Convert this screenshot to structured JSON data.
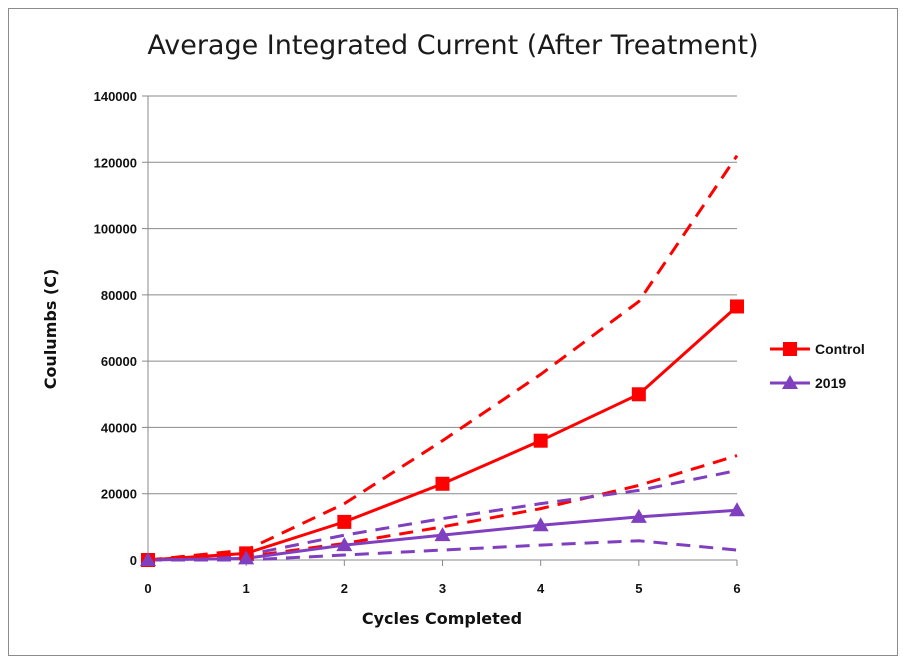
{
  "chart_data": {
    "type": "line",
    "title": "Average Integrated Current (After Treatment)",
    "xlabel": "Cycles Completed",
    "ylabel": "Coulumbs (C)",
    "x": [
      0,
      1,
      2,
      3,
      4,
      5,
      6
    ],
    "xlim": [
      0,
      6
    ],
    "ylim": [
      0,
      140000
    ],
    "yticks": [
      0,
      20000,
      40000,
      60000,
      80000,
      100000,
      120000,
      140000
    ],
    "ytick_labels": [
      "0",
      "20000",
      "40000",
      "60000",
      "80000",
      "100000",
      "120000",
      "140000"
    ],
    "xtick_labels": [
      "0",
      "1",
      "2",
      "3",
      "4",
      "5",
      "6"
    ],
    "grid": "horizontal",
    "legend_position": "right",
    "series": [
      {
        "name": "Control",
        "color": "#ff0000",
        "marker": "square",
        "style": "solid",
        "values": [
          0,
          2000,
          11500,
          23000,
          36000,
          50000,
          76500
        ]
      },
      {
        "name": "2019",
        "color": "#7f3fbf",
        "marker": "triangle",
        "style": "solid",
        "values": [
          0,
          500,
          4500,
          7500,
          10500,
          13000,
          15000
        ]
      }
    ],
    "bounds": [
      {
        "of": "Control",
        "kind": "upper",
        "color": "#ff0000",
        "style": "dashed",
        "values": [
          0,
          3000,
          17000,
          36000,
          56000,
          78000,
          122000
        ]
      },
      {
        "of": "Control",
        "kind": "lower",
        "color": "#ff0000",
        "style": "dashed",
        "values": [
          0,
          1000,
          5000,
          10000,
          15500,
          22500,
          31500
        ]
      },
      {
        "of": "2019",
        "kind": "upper",
        "color": "#7f3fbf",
        "style": "dashed",
        "values": [
          0,
          1500,
          7500,
          12500,
          17000,
          21000,
          27000
        ]
      },
      {
        "of": "2019",
        "kind": "lower",
        "color": "#7f3fbf",
        "style": "dashed",
        "values": [
          0,
          0,
          1500,
          3000,
          4500,
          5800,
          3000
        ]
      }
    ]
  }
}
